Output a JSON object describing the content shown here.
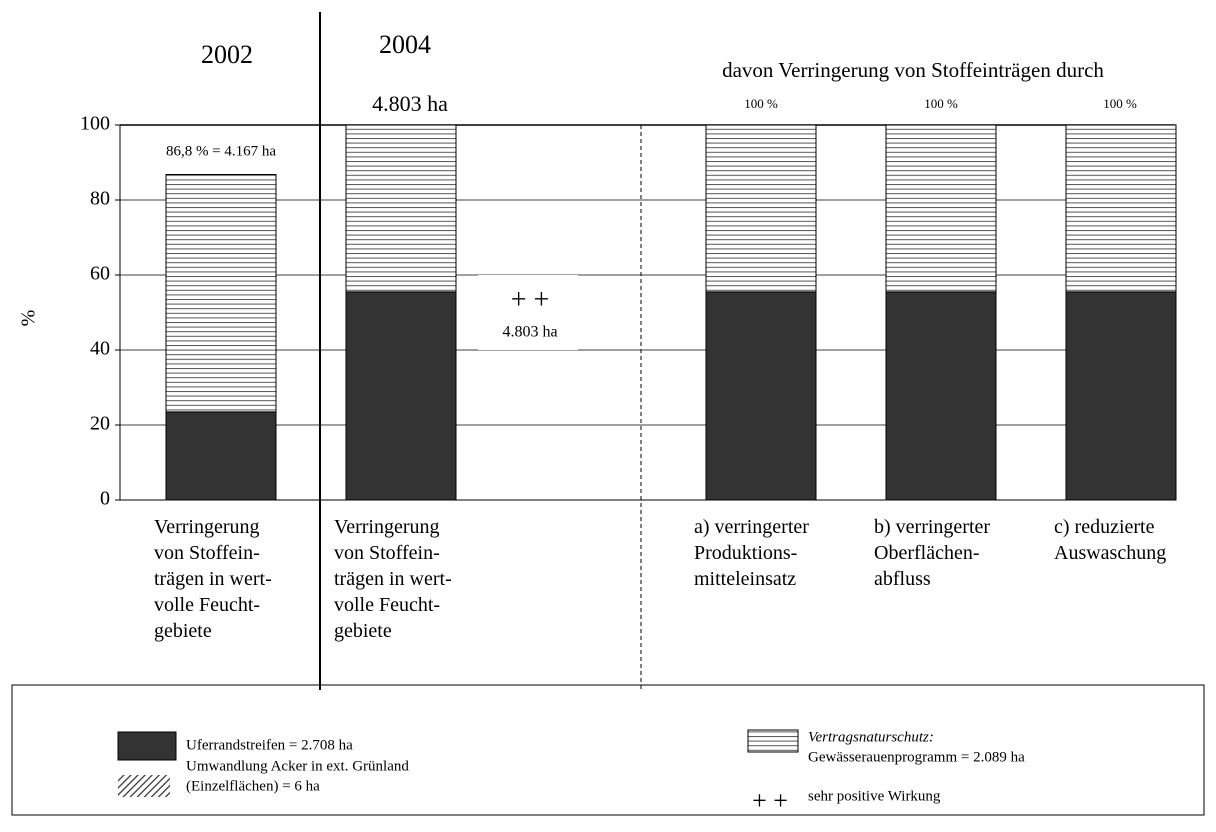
{
  "chart_data": {
    "type": "stacked_bar",
    "ylabel": "%",
    "categories": [
      "Verringerung\nvon Stoffein-\nträgen in wert-\nvolle Feucht-\ngebiete",
      "Verringerung\nvon Stoffein-\nträgen in wert-\nvolle Feucht-\ngebiete",
      null,
      "a) verringerter\nProduktions-\nmitteleinsatz",
      "b) verringerter\nOberflächen-\nabfluss",
      "c) reduzierte\nAuswaschung"
    ],
    "series": [
      {
        "name": "Uferrandstreifen = 2.708 ha",
        "color": "#333333",
        "pattern": "solid",
        "values": [
          23.5,
          55.5,
          null,
          55.5,
          55.5,
          55.5
        ]
      },
      {
        "group": "Vertragsnaturschutz:",
        "name": "Gewässerauenprogramm = 2.089 ha",
        "color": "#555555",
        "pattern": "horizontal",
        "values": [
          63.3,
          44.5,
          null,
          44.5,
          44.5,
          44.5
        ]
      }
    ],
    "legend_items": [
      {
        "lines": [
          "Umwandlung Acker in ext. Grünland",
          "(Einzelflächen) = 6 ha"
        ],
        "pattern": "diagonal"
      },
      {
        "symbol": "+ +",
        "lines": [
          "sehr positive Wirkung"
        ]
      }
    ],
    "annotations": [
      "2002",
      "2004",
      "4.803 ha",
      "davon Verringerung von Stoffeinträgen durch",
      "100 %",
      "100 %",
      "100 %",
      "86,8 % = 4.167 ha",
      "+ +",
      "4.803 ha"
    ],
    "ylim": [
      0,
      100
    ],
    "yticks": [
      0,
      20,
      40,
      60,
      80,
      100
    ],
    "grid": true
  }
}
